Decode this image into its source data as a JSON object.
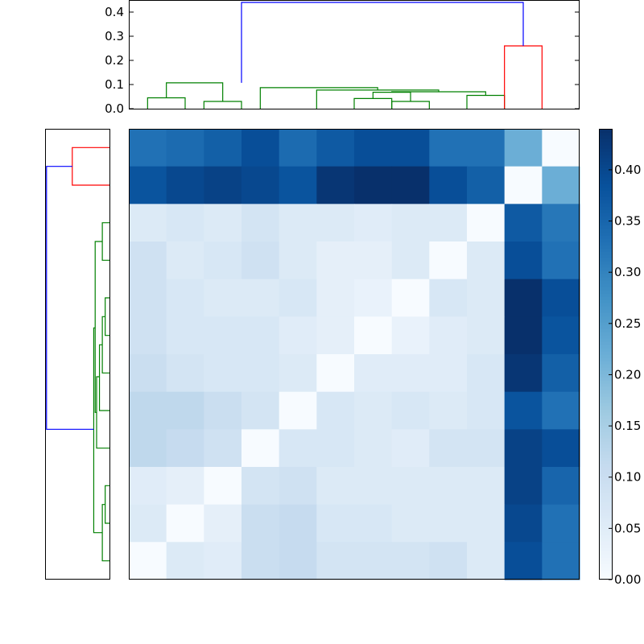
{
  "chart_data": {
    "type": "heatmap",
    "title": "",
    "xlabel": "",
    "ylabel": "",
    "grid": false,
    "rows": 12,
    "cols": 12,
    "colormap": {
      "name": "Blues",
      "stops": [
        "#f7fbff",
        "#deebf7",
        "#c6dbef",
        "#9ecae1",
        "#6baed6",
        "#4292c6",
        "#2171b5",
        "#08519c",
        "#08306b"
      ]
    },
    "value_range": [
      0.0,
      0.44
    ],
    "values": [
      [
        0.33,
        0.34,
        0.36,
        0.39,
        0.34,
        0.37,
        0.39,
        0.39,
        0.33,
        0.33,
        0.22,
        0.0
      ],
      [
        0.38,
        0.4,
        0.41,
        0.4,
        0.38,
        0.43,
        0.44,
        0.44,
        0.39,
        0.36,
        0.0,
        0.22
      ],
      [
        0.06,
        0.07,
        0.06,
        0.08,
        0.06,
        0.06,
        0.05,
        0.06,
        0.06,
        0.0,
        0.37,
        0.32
      ],
      [
        0.09,
        0.06,
        0.07,
        0.09,
        0.06,
        0.04,
        0.04,
        0.06,
        0.0,
        0.06,
        0.39,
        0.33
      ],
      [
        0.09,
        0.07,
        0.06,
        0.06,
        0.07,
        0.04,
        0.03,
        0.0,
        0.07,
        0.06,
        0.44,
        0.39
      ],
      [
        0.09,
        0.07,
        0.07,
        0.07,
        0.05,
        0.04,
        0.0,
        0.03,
        0.05,
        0.06,
        0.44,
        0.38
      ],
      [
        0.1,
        0.08,
        0.07,
        0.07,
        0.06,
        0.0,
        0.05,
        0.05,
        0.05,
        0.07,
        0.43,
        0.36
      ],
      [
        0.12,
        0.12,
        0.1,
        0.08,
        0.0,
        0.07,
        0.06,
        0.07,
        0.06,
        0.07,
        0.38,
        0.33
      ],
      [
        0.12,
        0.11,
        0.09,
        0.0,
        0.07,
        0.07,
        0.06,
        0.05,
        0.08,
        0.08,
        0.41,
        0.39
      ],
      [
        0.05,
        0.04,
        0.0,
        0.08,
        0.09,
        0.06,
        0.06,
        0.06,
        0.06,
        0.06,
        0.41,
        0.35
      ],
      [
        0.06,
        0.0,
        0.04,
        0.1,
        0.11,
        0.07,
        0.07,
        0.06,
        0.06,
        0.06,
        0.4,
        0.33
      ],
      [
        0.0,
        0.06,
        0.05,
        0.1,
        0.11,
        0.08,
        0.08,
        0.08,
        0.09,
        0.06,
        0.39,
        0.33
      ]
    ],
    "colorbar": {
      "ticks": [
        0.0,
        0.05,
        0.1,
        0.15,
        0.2,
        0.25,
        0.3,
        0.35,
        0.4
      ],
      "tick_labels": [
        "0.00",
        "0.05",
        "0.10",
        "0.15",
        "0.20",
        "0.25",
        "0.30",
        "0.35",
        "0.40"
      ],
      "range": [
        0.0,
        0.44
      ]
    },
    "top_dendrogram": {
      "ylim": [
        0.0,
        0.45
      ],
      "ticks": [
        0.0,
        0.1,
        0.2,
        0.3,
        0.4
      ],
      "tick_labels": [
        "0.0",
        "0.1",
        "0.2",
        "0.3",
        "0.4"
      ],
      "leaf_count": 12,
      "links": [
        {
          "left": 0.5,
          "right": 1.5,
          "left_base": 0.0,
          "right_base": 0.0,
          "height": 0.045,
          "color": "#008000"
        },
        {
          "left": 2.0,
          "right": 3.0,
          "left_base": 0.0,
          "right_base": 0.0,
          "height": 0.03,
          "color": "#008000"
        },
        {
          "left": 1.0,
          "right": 2.5,
          "left_base": 0.045,
          "right_base": 0.03,
          "height": 0.107,
          "color": "#008000"
        },
        {
          "left": 6.0,
          "right": 7.0,
          "left_base": 0.0,
          "right_base": 0.0,
          "height": 0.042,
          "color": "#008000"
        },
        {
          "left": 7.0,
          "right": 8.0,
          "left_base": 0.0,
          "right_base": 0.0,
          "height": 0.03,
          "color": "#008000"
        },
        {
          "left": 6.5,
          "right": 7.5,
          "left_base": 0.042,
          "right_base": 0.03,
          "height": 0.068,
          "color": "#008000"
        },
        {
          "left": 9.0,
          "right": 10.0,
          "left_base": 0.0,
          "right_base": 0.0,
          "height": 0.055,
          "color": "#008000"
        },
        {
          "left": 7.0,
          "right": 9.5,
          "left_base": 0.068,
          "right_base": 0.055,
          "height": 0.07,
          "color": "#008000"
        },
        {
          "left": 5.0,
          "right": 8.25,
          "left_base": 0.0,
          "right_base": 0.07,
          "height": 0.077,
          "color": "#008000"
        },
        {
          "left": 3.5,
          "right": 6.625,
          "left_base": 0.0,
          "right_base": 0.077,
          "height": 0.087,
          "color": "#008000"
        },
        {
          "left": 10.0,
          "right": 11.0,
          "left_base": 0.0,
          "right_base": 0.0,
          "height": 0.26,
          "color": "#ff0000"
        },
        {
          "left": 3.0,
          "right": 10.5,
          "left_base": 0.107,
          "right_base": 0.26,
          "height": 0.44,
          "color": "#0000ff"
        }
      ]
    },
    "left_dendrogram": {
      "leaf_count": 12,
      "links": [
        {
          "top": 0.5,
          "bottom": 1.5,
          "top_base": 0.0,
          "bottom_base": 0.0,
          "height": 0.26,
          "color": "#ff0000"
        },
        {
          "top": 2.5,
          "bottom": 3.5,
          "top_base": 0.0,
          "bottom_base": 0.0,
          "height": 0.05,
          "color": "#008000"
        },
        {
          "top": 4.5,
          "bottom": 5.5,
          "top_base": 0.0,
          "bottom_base": 0.0,
          "height": 0.03,
          "color": "#008000"
        },
        {
          "top": 5.0,
          "bottom": 6.5,
          "top_base": 0.03,
          "bottom_base": 0.0,
          "height": 0.05,
          "color": "#008000"
        },
        {
          "top": 5.75,
          "bottom": 7.5,
          "top_base": 0.05,
          "bottom_base": 0.0,
          "height": 0.07,
          "color": "#008000"
        },
        {
          "top": 6.6,
          "bottom": 8.5,
          "top_base": 0.07,
          "bottom_base": 0.0,
          "height": 0.09,
          "color": "#008000"
        },
        {
          "top": 3.0,
          "bottom": 7.55,
          "top_base": 0.05,
          "bottom_base": 0.09,
          "height": 0.1,
          "color": "#008000"
        },
        {
          "top": 9.5,
          "bottom": 10.5,
          "top_base": 0.0,
          "bottom_base": 0.0,
          "height": 0.03,
          "color": "#008000"
        },
        {
          "top": 10.0,
          "bottom": 11.5,
          "top_base": 0.03,
          "bottom_base": 0.0,
          "height": 0.05,
          "color": "#008000"
        },
        {
          "top": 5.3,
          "bottom": 10.75,
          "top_base": 0.1,
          "bottom_base": 0.05,
          "height": 0.11,
          "color": "#008000"
        },
        {
          "top": 1.0,
          "bottom": 8.0,
          "top_base": 0.26,
          "bottom_base": 0.11,
          "height": 0.44,
          "color": "#0000ff"
        }
      ]
    }
  }
}
